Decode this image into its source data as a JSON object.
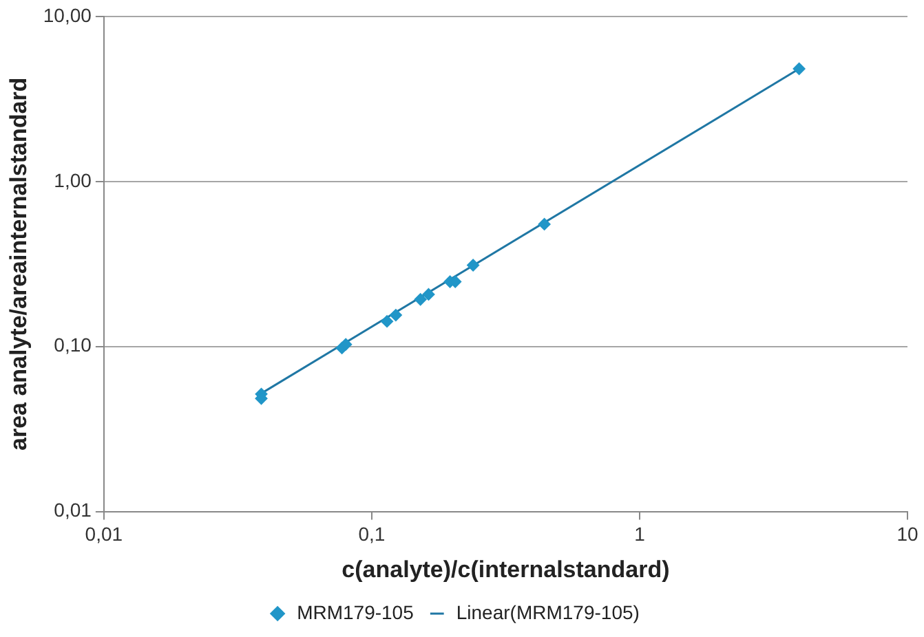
{
  "chart_data": {
    "type": "scatter",
    "xlabel": "c(analyte)/c(internalstandard)",
    "ylabel": "area analyte/areainternalstandard",
    "log": "xy",
    "grid": "y",
    "legend": "bottom",
    "xlim": [
      0.01,
      10
    ],
    "xticks": [
      {
        "value": 0.01,
        "label": "0,01"
      },
      {
        "value": 0.1,
        "label": "0,1"
      },
      1,
      10
    ],
    "ylim": [
      0.01,
      10
    ],
    "yticks": [
      {
        "value": 0.01,
        "label": "0,01"
      },
      {
        "value": 0.1,
        "label": "0,10"
      },
      {
        "value": 1,
        "label": "1,00"
      },
      {
        "value": 10,
        "label": "10,00"
      }
    ],
    "series": [
      {
        "name": "MRM179-105",
        "marker": "diamond",
        "color": "#2196c8",
        "x": [
          0.0387,
          0.0387,
          0.0774,
          0.08,
          0.114,
          0.123,
          0.152,
          0.163,
          0.196,
          0.205,
          0.239,
          0.441,
          3.94
        ],
        "values": [
          0.0515,
          0.0484,
          0.098,
          0.103,
          0.142,
          0.155,
          0.193,
          0.207,
          0.247,
          0.247,
          0.311,
          0.551,
          4.82
        ]
      },
      {
        "name": "Linear(MRM179-105)",
        "type": "line",
        "marker": "none",
        "color": "#1f77a4",
        "x": [
          0.0387,
          3.94
        ],
        "values": [
          0.052,
          4.82
        ]
      }
    ]
  }
}
